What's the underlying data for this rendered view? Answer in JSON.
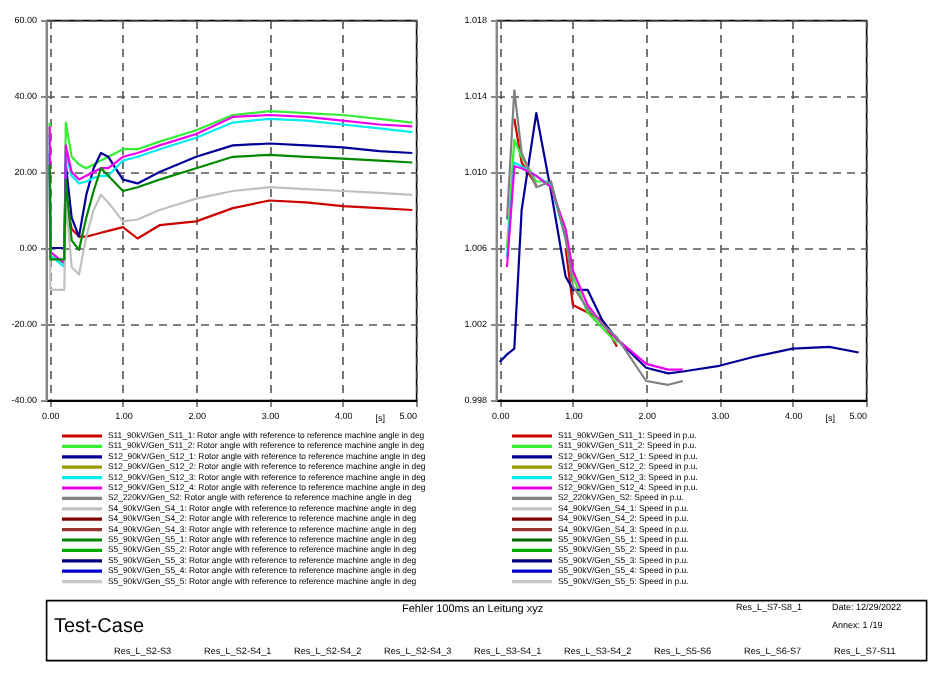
{
  "chart_data": [
    {
      "type": "line",
      "legend": "bottom",
      "grid": true,
      "line_style": "solid",
      "xlabel": "[s]",
      "xlim": [
        -0.05,
        5.0
      ],
      "ylim": [
        -40,
        60
      ],
      "xticks": [
        {
          "value": 0,
          "label": "0.00"
        },
        {
          "value": 1,
          "label": "1.00"
        },
        {
          "value": 2,
          "label": "2.00"
        },
        {
          "value": 3,
          "label": "3.00"
        },
        {
          "value": 4,
          "label": "4.00"
        },
        {
          "value": 5,
          "label": "5.00"
        }
      ],
      "yticks": [
        {
          "value": -40,
          "label": "-40.00"
        },
        {
          "value": -20,
          "label": "-20.00"
        },
        {
          "value": 0,
          "label": "0.00"
        },
        {
          "value": 20,
          "label": "20.00"
        },
        {
          "value": 40,
          "label": "40.00"
        },
        {
          "value": 60,
          "label": "60.00"
        }
      ],
      "x": [
        0,
        0.01,
        0.2,
        0.22,
        0.3,
        0.4,
        0.5,
        0.6,
        0.7,
        0.8,
        1.0,
        1.2,
        1.5,
        2.0,
        2.5,
        3.0,
        3.5,
        4.0,
        4.5,
        4.95
      ],
      "annotations": [
        "Test-Case",
        "Fehler 100ms an Leitung xyz",
        "Res_L_S2-S3",
        "Res_L_S2-S4_1",
        "Res_L_S2-S4_2",
        "Res_L_S2-S4_3",
        "Res_L_S3-S4_1",
        "Res_L_S3-S4_2",
        "Res_L_S5-S6",
        "Res_L_S6-S7",
        "Res_L_S7-S11"
      ],
      "series": [
        {
          "name": "S11_90kV/Gen_S11_1: Rotor angle with reference to reference machine angle in deg",
          "color": "#cc0000",
          "values": [
            null,
            null,
            null,
            13,
            5,
            3,
            3,
            3.5,
            4,
            4.5,
            5.5,
            2.5,
            6,
            7,
            10.5,
            12.5,
            12,
            11,
            10.5,
            10
          ]
        },
        {
          "name": "S11_90kV/Gen_S11_2: Rotor angle with reference to reference machine angle in deg",
          "color": "#33ee33",
          "values": [
            33,
            -2,
            -4,
            33,
            24,
            22,
            21,
            22,
            23,
            24,
            26,
            26,
            28,
            31,
            35,
            36,
            35.5,
            35,
            34,
            33
          ]
        },
        {
          "name": "S12_90kV/Gen_S12_1: Rotor angle with reference to reference machine angle in deg",
          "color": "#000099",
          "values": [
            25,
            0,
            0,
            22,
            8,
            3,
            14,
            21,
            25,
            24,
            18,
            17,
            20,
            24,
            27,
            27.5,
            27,
            26.5,
            25.5,
            25
          ]
        },
        {
          "name": "S12_90kV/Gen_S12_2: Rotor angle with reference to reference machine angle in deg",
          "color": "#999900",
          "values": [
            null,
            null,
            null,
            null,
            null,
            null,
            null,
            null,
            null,
            null,
            null,
            null,
            null,
            null,
            null,
            null,
            null,
            null,
            null,
            null
          ]
        },
        {
          "name": "S12_90kV/Gen_S12_3: Rotor angle with reference to reference machine angle in deg",
          "color": "#00eeee",
          "values": [
            30,
            -2,
            -5,
            25,
            19,
            17,
            17.5,
            18.5,
            19,
            19,
            23,
            24,
            26,
            29,
            33,
            34,
            33.5,
            32.5,
            31.5,
            30.5
          ]
        },
        {
          "name": "S12_90kV/Gen_S12_4: Rotor angle with reference to reference machine angle in deg",
          "color": "#ee00ee",
          "values": [
            32,
            -1,
            -4,
            27,
            20,
            18,
            19,
            20,
            21,
            21,
            24,
            25,
            27,
            30,
            34.5,
            35,
            34.5,
            33.5,
            32.5,
            32
          ]
        },
        {
          "name": "S2_220kV/Gen_S2: Rotor angle with reference to reference machine angle in deg",
          "color": "#808080",
          "values": [
            null,
            null,
            null,
            null,
            null,
            null,
            null,
            null,
            null,
            null,
            null,
            null,
            null,
            null,
            null,
            null,
            null,
            null,
            null,
            null
          ]
        },
        {
          "name": "S4_90kV/Gen_S4_1: Rotor angle with reference to reference machine angle in deg",
          "color": "#c0c0c0",
          "values": [
            14,
            -11,
            -11,
            13,
            -5,
            -7,
            3,
            10,
            14,
            12,
            7,
            7.5,
            10,
            13,
            15,
            16,
            15.5,
            15,
            14.5,
            14
          ]
        },
        {
          "name": "S4_90kV/Gen_S4_2: Rotor angle with reference to reference machine angle in deg",
          "color": "#800000",
          "values": [
            null,
            null,
            null,
            null,
            null,
            null,
            null,
            null,
            null,
            null,
            null,
            null,
            null,
            null,
            null,
            null,
            null,
            null,
            null,
            null
          ]
        },
        {
          "name": "S4_90kV/Gen_S4_3: Rotor angle with reference to reference machine angle in deg",
          "color": "#993333",
          "values": [
            null,
            null,
            null,
            null,
            null,
            null,
            null,
            null,
            null,
            null,
            null,
            null,
            null,
            null,
            null,
            null,
            null,
            null,
            null,
            null
          ]
        },
        {
          "name": "S5_90kV/Gen_S5_1: Rotor angle with reference to reference machine angle in deg",
          "color": "#008800",
          "values": [
            22,
            -3,
            -3,
            18,
            2,
            -0.5,
            8,
            15,
            21,
            19,
            15,
            16,
            18,
            21,
            24,
            24.5,
            24,
            23.5,
            23,
            22.5
          ]
        },
        {
          "name": "S5_90kV/Gen_S5_2: Rotor angle with reference to reference machine angle in deg",
          "color": "#00aa00",
          "values": [
            null,
            null,
            null,
            null,
            null,
            null,
            null,
            null,
            null,
            null,
            null,
            null,
            null,
            null,
            null,
            null,
            null,
            null,
            null,
            null
          ]
        },
        {
          "name": "S5_90kV/Gen_S5_3: Rotor angle with reference to reference machine angle in deg",
          "color": "#000080",
          "values": [
            null,
            null,
            null,
            null,
            null,
            null,
            null,
            null,
            null,
            null,
            null,
            null,
            null,
            null,
            null,
            null,
            null,
            null,
            null,
            null
          ]
        },
        {
          "name": "S5_90kV/Gen_S5_4: Rotor angle with reference to reference machine angle in deg",
          "color": "#0000cc",
          "values": [
            null,
            null,
            null,
            null,
            null,
            null,
            null,
            null,
            null,
            null,
            null,
            null,
            null,
            null,
            null,
            null,
            null,
            null,
            null,
            null
          ]
        },
        {
          "name": "S5_90kV/Gen_S5_5: Rotor angle with reference to reference machine angle in deg",
          "color": "#c8c8c8",
          "values": [
            null,
            null,
            null,
            null,
            null,
            null,
            null,
            null,
            null,
            null,
            null,
            null,
            null,
            null,
            null,
            null,
            null,
            null,
            null,
            null
          ]
        }
      ]
    },
    {
      "type": "line",
      "legend": "bottom",
      "grid": true,
      "line_style": "solid",
      "xlabel": "[s]",
      "xlim": [
        -0.05,
        5.0
      ],
      "ylim": [
        0.998,
        1.018
      ],
      "xticks": [
        {
          "value": 0,
          "label": "0.00"
        },
        {
          "value": 1,
          "label": "1.00"
        },
        {
          "value": 2,
          "label": "2.00"
        },
        {
          "value": 3,
          "label": "3.00"
        },
        {
          "value": 4,
          "label": "4.00"
        },
        {
          "value": 5,
          "label": "5.00"
        }
      ],
      "yticks": [
        0.998,
        {
          "value": 1.002,
          "label": "1.002"
        },
        {
          "value": 1.006,
          "label": "1.006"
        },
        {
          "value": 1.01,
          "label": "1.010"
        },
        {
          "value": 1.014,
          "label": "1.014"
        },
        {
          "value": 1.018,
          "label": "1.018"
        }
      ],
      "x": [
        0,
        0.1,
        0.2,
        0.3,
        0.5,
        0.7,
        0.9,
        1.0,
        1.2,
        1.4,
        1.6,
        2.0,
        2.3,
        2.5,
        3.0,
        3.5,
        4.0,
        4.5,
        4.9
      ],
      "annotations": [
        "Res_L_S7-S8_1",
        "Date: 12/29/2022",
        "Annex: 1 /19"
      ],
      "series": [
        {
          "name": "S11_90kV/Gen_S11_1: Speed in p.u.",
          "color": "#cc0000",
          "values": [
            null,
            null,
            1.0128,
            1.0105,
            1.0093,
            null,
            1.006,
            1.003,
            1.0026,
            1.0022,
            1.0008,
            null,
            null,
            null,
            null,
            null,
            null,
            null,
            null
          ]
        },
        {
          "name": "S11_90kV/Gen_S11_2: Speed in p.u.",
          "color": "#33ee33",
          "values": [
            null,
            1.006,
            1.0117,
            1.0108,
            1.0095,
            1.0095,
            1.0065,
            1.0045,
            1.0026,
            1.0018,
            1.001,
            null,
            null,
            null,
            null,
            null,
            null,
            null,
            null
          ]
        },
        {
          "name": "S12_90kV/Gen_S12_1: Speed in p.u.",
          "color": "#000099",
          "values": [
            1.0,
            1.0004,
            1.0007,
            1.008,
            1.0131,
            1.009,
            1.0045,
            1.0038,
            1.0038,
            1.0022,
            1.0012,
            0.9997,
            0.9994,
            0.9995,
            0.9998,
            1.0003,
            1.0007,
            1.0008,
            1.0005
          ]
        },
        {
          "name": "S12_90kV/Gen_S12_2: Speed in p.u.",
          "color": "#999900",
          "values": [
            null,
            null,
            null,
            null,
            null,
            null,
            null,
            null,
            null,
            null,
            null,
            null,
            null,
            null,
            null,
            null,
            null,
            null,
            null
          ]
        },
        {
          "name": "S12_90kV/Gen_S12_3: Speed in p.u.",
          "color": "#00eeee",
          "values": [
            null,
            1.0055,
            1.0105,
            1.0103,
            1.0098,
            1.0093,
            1.0065,
            null,
            null,
            null,
            null,
            null,
            null,
            null,
            null,
            null,
            null,
            null,
            null
          ]
        },
        {
          "name": "S12_90kV/Gen_S12_4: Speed in p.u.",
          "color": "#ee00ee",
          "values": [
            null,
            1.005,
            1.0103,
            1.0102,
            1.0098,
            1.0092,
            1.007,
            1.0048,
            1.003,
            1.002,
            1.0012,
            0.9999,
            0.9996,
            0.9996,
            null,
            null,
            null,
            null,
            null
          ]
        },
        {
          "name": "S2_220kV/Gen_S2: Speed in p.u.",
          "color": "#808080",
          "values": [
            null,
            1.0075,
            1.0143,
            1.011,
            1.0092,
            1.0095,
            1.0065,
            1.004,
            1.0028,
            1.002,
            1.0013,
            0.999,
            0.9988,
            0.999,
            null,
            null,
            null,
            null,
            null
          ]
        },
        {
          "name": "S4_90kV/Gen_S4_1: Speed in p.u.",
          "color": "#c0c0c0",
          "values": [
            null,
            null,
            null,
            null,
            null,
            null,
            null,
            null,
            null,
            null,
            null,
            null,
            null,
            null,
            null,
            null,
            null,
            null,
            null
          ]
        },
        {
          "name": "S4_90kV/Gen_S4_2: Speed in p.u.",
          "color": "#800000",
          "values": [
            null,
            null,
            null,
            null,
            null,
            null,
            null,
            null,
            null,
            null,
            null,
            null,
            null,
            null,
            null,
            null,
            null,
            null,
            null
          ]
        },
        {
          "name": "S4_90kV/Gen_S4_3: Speed in p.u.",
          "color": "#993333",
          "values": [
            null,
            null,
            null,
            null,
            null,
            null,
            null,
            null,
            null,
            null,
            null,
            null,
            null,
            null,
            null,
            null,
            null,
            null,
            null
          ]
        },
        {
          "name": "S5_90kV/Gen_S5_1: Speed in p.u.",
          "color": "#006600",
          "values": [
            null,
            null,
            null,
            null,
            null,
            null,
            null,
            null,
            null,
            null,
            null,
            null,
            null,
            null,
            null,
            null,
            null,
            null,
            null
          ]
        },
        {
          "name": "S5_90kV/Gen_S5_2: Speed in p.u.",
          "color": "#00aa00",
          "values": [
            null,
            null,
            null,
            null,
            null,
            null,
            null,
            null,
            null,
            null,
            null,
            null,
            null,
            null,
            null,
            null,
            null,
            null,
            null
          ]
        },
        {
          "name": "S5_90kV/Gen_S5_3: Speed in p.u.",
          "color": "#000080",
          "values": [
            null,
            null,
            null,
            null,
            null,
            null,
            null,
            null,
            null,
            null,
            null,
            null,
            null,
            null,
            null,
            null,
            null,
            null,
            null
          ]
        },
        {
          "name": "S5_90kV/Gen_S5_4: Speed in p.u.",
          "color": "#0000cc",
          "values": [
            null,
            null,
            null,
            null,
            null,
            null,
            null,
            null,
            null,
            null,
            null,
            null,
            null,
            null,
            null,
            null,
            null,
            null,
            null
          ]
        },
        {
          "name": "S5_90kV/Gen_S5_5: Speed in p.u.",
          "color": "#c8c8c8",
          "values": [
            null,
            null,
            null,
            null,
            null,
            null,
            null,
            null,
            null,
            null,
            null,
            null,
            null,
            null,
            null,
            null,
            null,
            null,
            null
          ]
        }
      ]
    }
  ]
}
